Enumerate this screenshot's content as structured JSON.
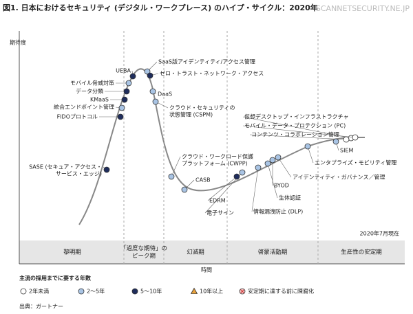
{
  "header": {
    "title": "図1. 日本におけるセキュリティ (デジタル・ワークプレース) のハイプ・サイクル：2020年",
    "watermark": "SCANNETSECURITY.NE.JP"
  },
  "axis": {
    "y_label": "期待度",
    "x_label": "時間"
  },
  "as_of": "2020年7月現在",
  "phases": [
    [
      "黎明期"
    ],
    [
      "「過度な期待」の",
      "ピーク期"
    ],
    [
      "幻滅期"
    ],
    [
      "啓蒙活動期"
    ],
    [
      "生産性の安定期"
    ]
  ],
  "legend": {
    "title": "主流の採用までに要する年数",
    "items": [
      {
        "label": "2年未満",
        "shape": "circle",
        "color": "#ffffff",
        "technologies": [
          [
            "仮想デスクトップ・インフラストラクチャ"
          ],
          [
            "モバイル・データ・プロテクション (PC)"
          ],
          [
            "コンテンツ・コラボレーション管理"
          ]
        ]
      },
      {
        "label": "2～5年",
        "shape": "circle",
        "color": "#a9c4e4",
        "technologies": [
          [
            "統合エンドポイント管理"
          ],
          [
            "モバイル脅威対策"
          ],
          [
            "SaaS版アイデンティティ/アクセス管理"
          ],
          [
            "DaaS"
          ],
          [
            "クラウド・セキュリティの",
            "状態管理 (CSPM)"
          ],
          [
            "クラウド・ワークロード保護",
            "プラットフォーム (CWPP)"
          ],
          [
            "CASB"
          ],
          [
            "電子サイン"
          ],
          [
            "情報漏洩防止 (DLP)"
          ],
          [
            "生体認証"
          ],
          [
            "BYOD"
          ],
          [
            "アイデンティティ・ガバナンス／管理"
          ],
          [
            "エンタプライズ・モビリティ管理"
          ],
          [
            "SIEM"
          ]
        ]
      },
      {
        "label": "5～10年",
        "shape": "circle",
        "color": "#1f2d5c",
        "technologies": [
          [
            "SASE (セキュア・アクセス・",
            "サービス・エッジ)"
          ],
          [
            "FIDOプロトコル"
          ],
          [
            "KMaaS"
          ],
          [
            "データ分類"
          ],
          [
            "UEBA"
          ],
          [
            "ゼロ・トラスト・ネットワーク・アクセス"
          ],
          [
            "EDRM"
          ]
        ]
      },
      {
        "label": "10年以上",
        "shape": "triangle",
        "color": "#e9a23b",
        "technologies": []
      },
      {
        "label": "安定期に達する前に陳腐化",
        "shape": "crossed",
        "color": "#f4c7c7",
        "technologies": []
      }
    ]
  },
  "source": "出典：ガートナー"
}
